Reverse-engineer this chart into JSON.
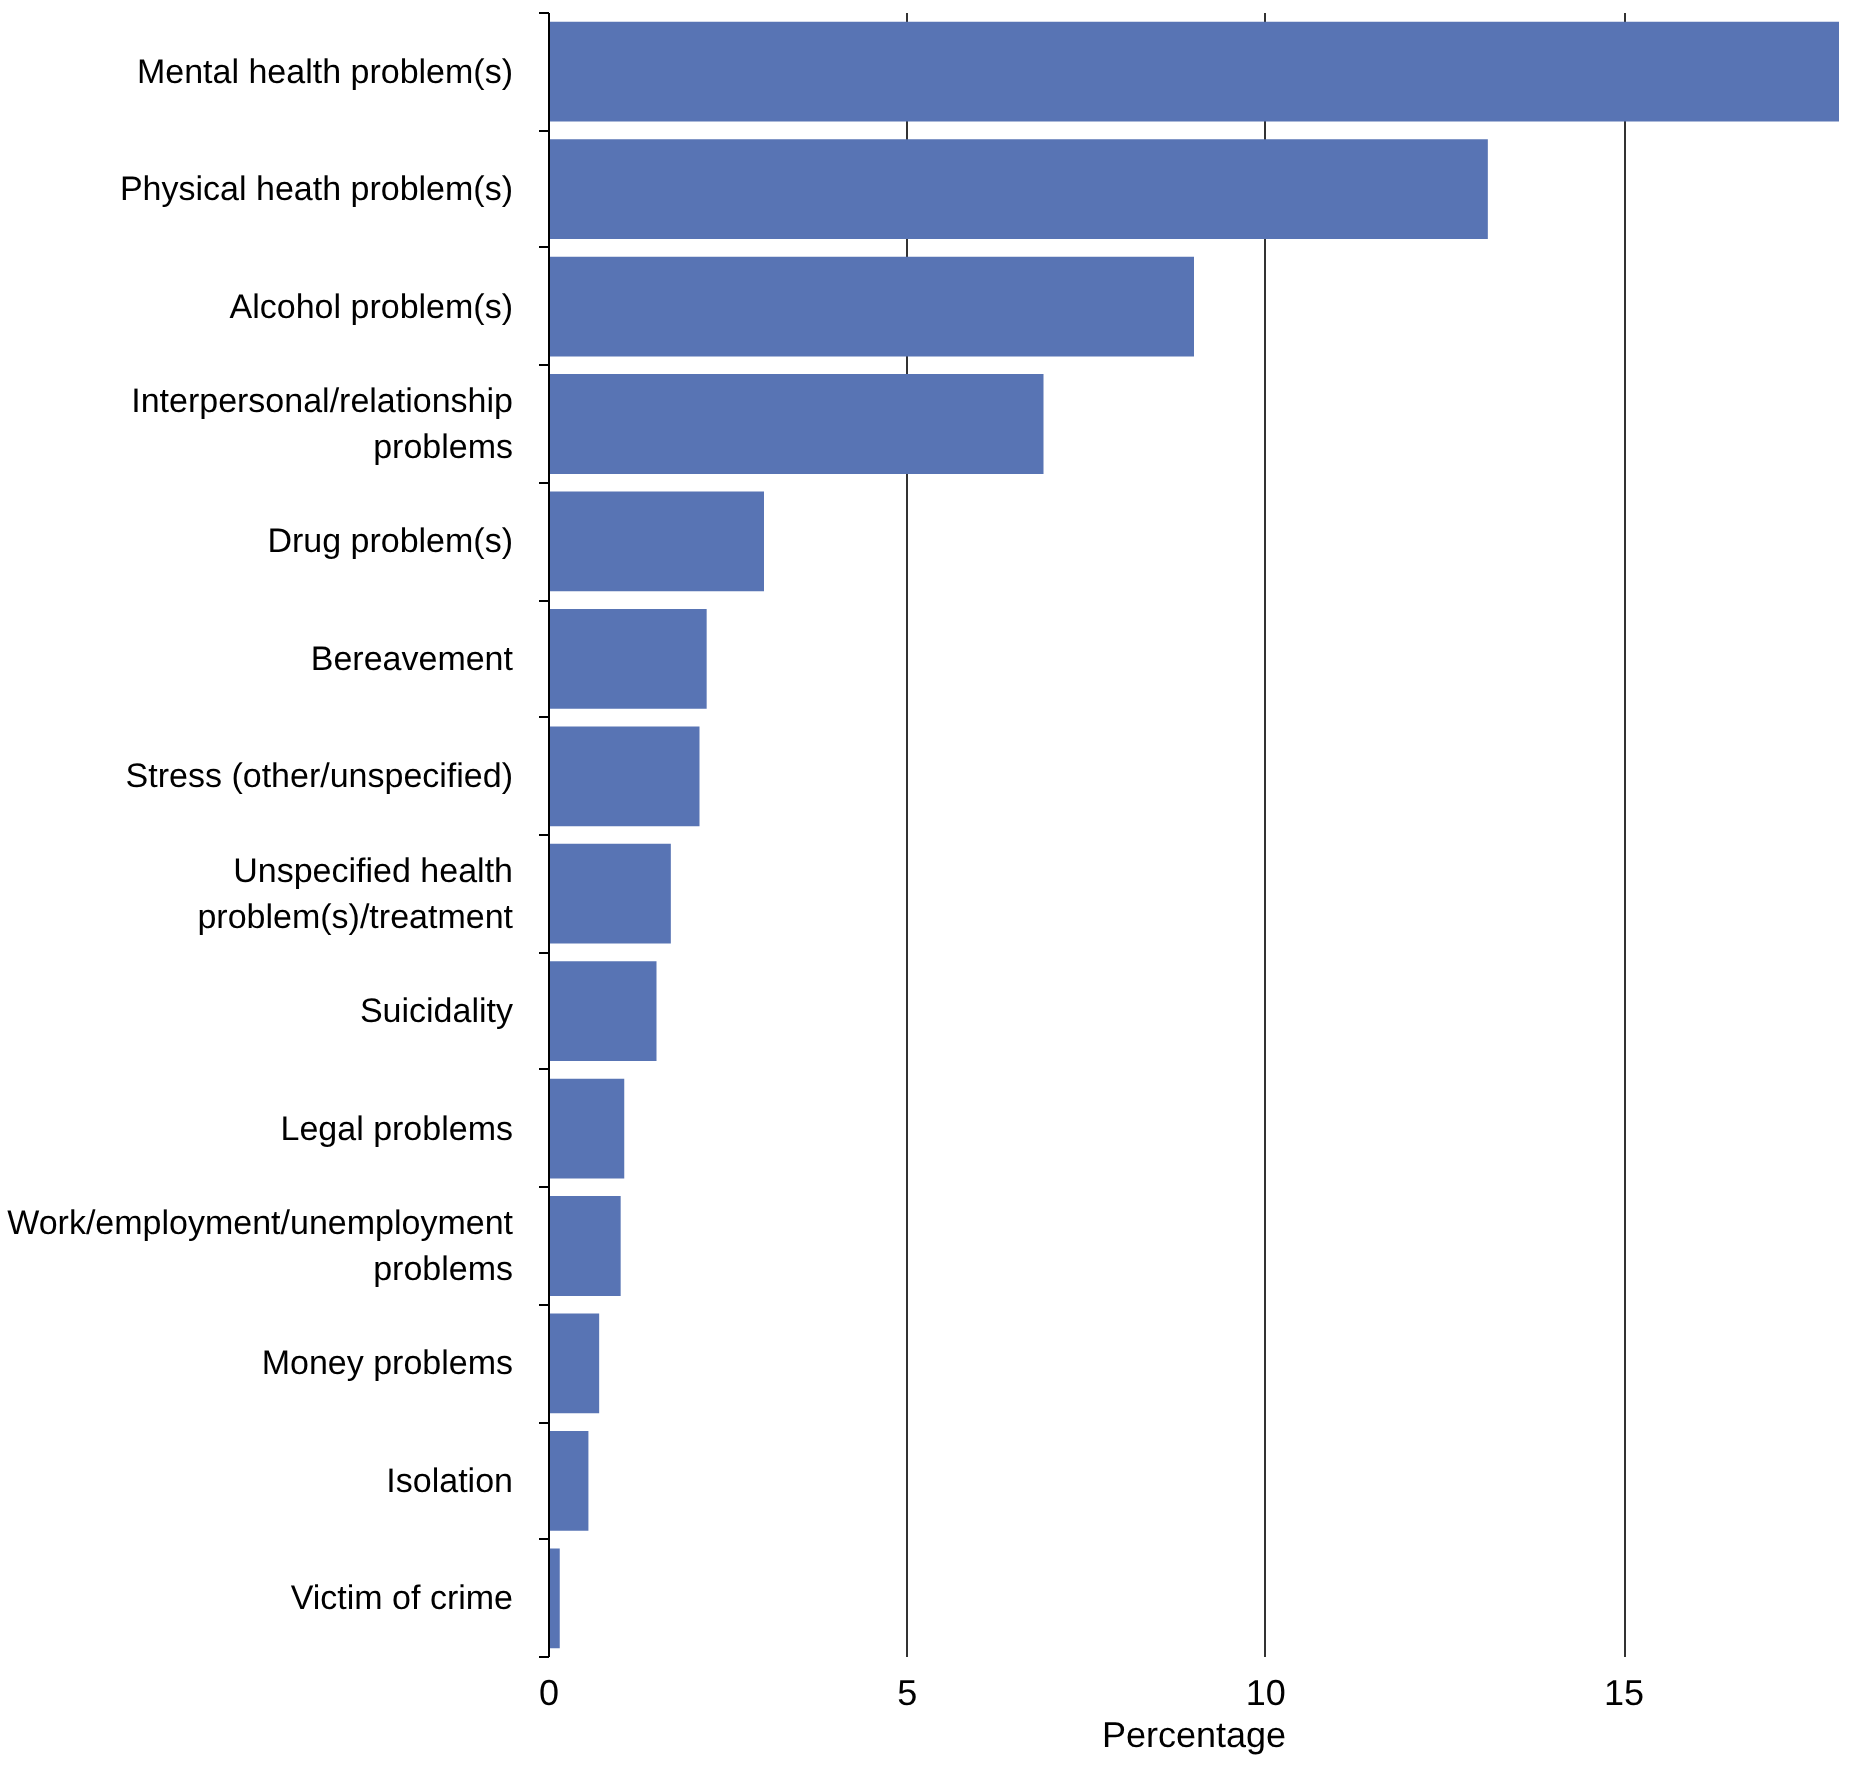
{
  "chart_data": {
    "type": "bar",
    "orientation": "horizontal",
    "xlabel": "Percentage",
    "categories": [
      "Mental health problem(s)",
      "Physical heath problem(s)",
      "Alcohol problem(s)",
      "Interpersonal/relationship problems",
      "Drug problem(s)",
      "Bereavement",
      "Stress (other/unspecified)",
      "Unspecified health problem(s)/treatment",
      "Suicidality",
      "Legal problems",
      "Work/employment/unemployment problems",
      "Money problems",
      "Isolation",
      "Victim of crime"
    ],
    "values": [
      18.0,
      13.1,
      9.0,
      6.9,
      3.0,
      2.2,
      2.1,
      1.7,
      1.5,
      1.05,
      1.0,
      0.7,
      0.55,
      0.15
    ],
    "color": "#5874b4",
    "xlim": [
      0,
      18
    ],
    "xticks": [
      0,
      5,
      10,
      15
    ],
    "grid": "x"
  }
}
